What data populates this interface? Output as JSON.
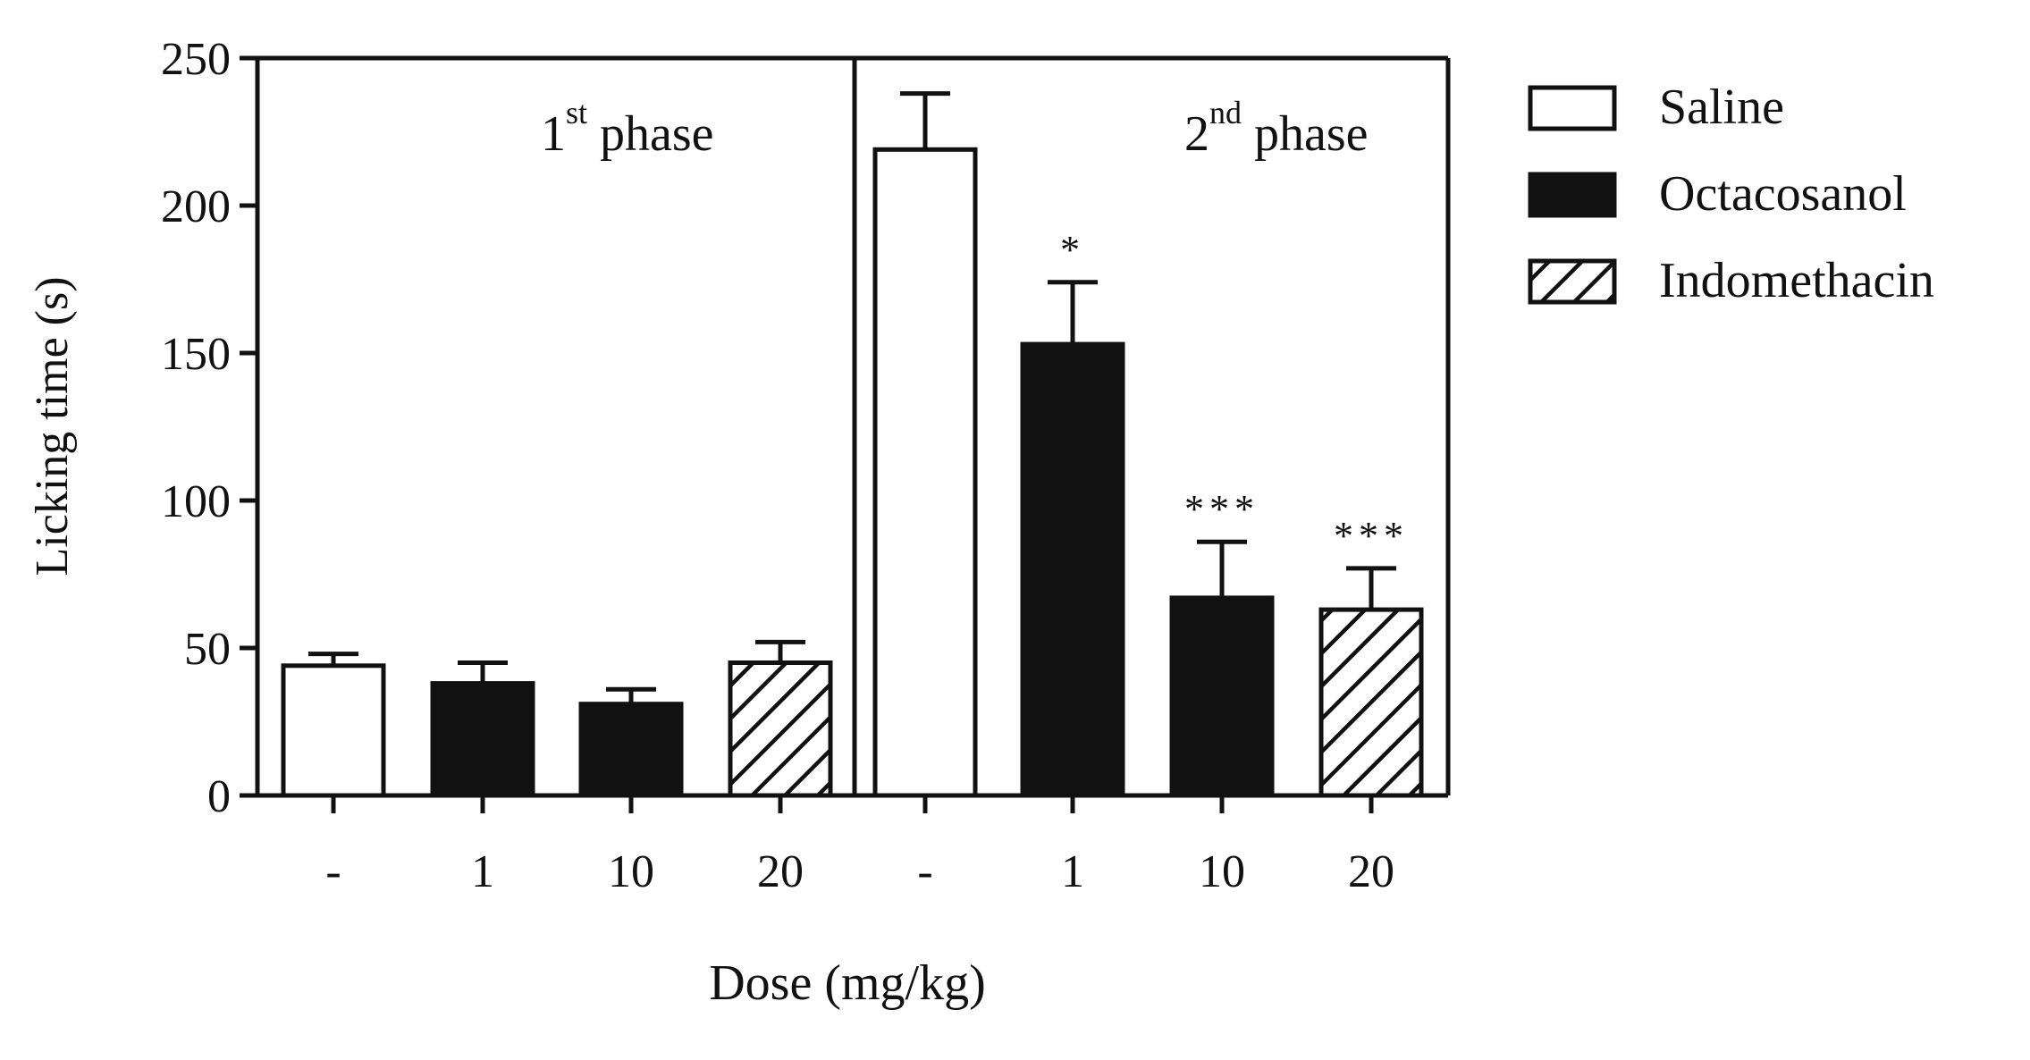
{
  "chart_data": {
    "type": "bar",
    "ylabel": "Licking time (s)",
    "xlabel": "Dose (mg/kg)",
    "ylim": [
      0,
      250
    ],
    "yticks": [
      0,
      50,
      100,
      150,
      200,
      250
    ],
    "legend_position": "right",
    "legend": [
      {
        "name": "Saline",
        "fill": "white"
      },
      {
        "name": "Octacosanol",
        "fill": "black"
      },
      {
        "name": "Indomethacin",
        "fill": "hatch"
      }
    ],
    "phases": [
      {
        "label_base": "1",
        "label_sup": "st",
        "label_rest": " phase",
        "bars": [
          {
            "dose": "-",
            "series": "Saline",
            "value": 44,
            "error": 4,
            "sig": ""
          },
          {
            "dose": "1",
            "series": "Octacosanol",
            "value": 38,
            "error": 7,
            "sig": ""
          },
          {
            "dose": "10",
            "series": "Octacosanol",
            "value": 31,
            "error": 5,
            "sig": ""
          },
          {
            "dose": "20",
            "series": "Indomethacin",
            "value": 45,
            "error": 7,
            "sig": ""
          }
        ]
      },
      {
        "label_base": "2",
        "label_sup": "nd",
        "label_rest": " phase",
        "bars": [
          {
            "dose": "-",
            "series": "Saline",
            "value": 219,
            "error": 19,
            "sig": ""
          },
          {
            "dose": "1",
            "series": "Octacosanol",
            "value": 153,
            "error": 21,
            "sig": "*"
          },
          {
            "dose": "10",
            "series": "Octacosanol",
            "value": 67,
            "error": 19,
            "sig": "***"
          },
          {
            "dose": "20",
            "series": "Indomethacin",
            "value": 63,
            "error": 14,
            "sig": "***"
          }
        ]
      }
    ]
  }
}
